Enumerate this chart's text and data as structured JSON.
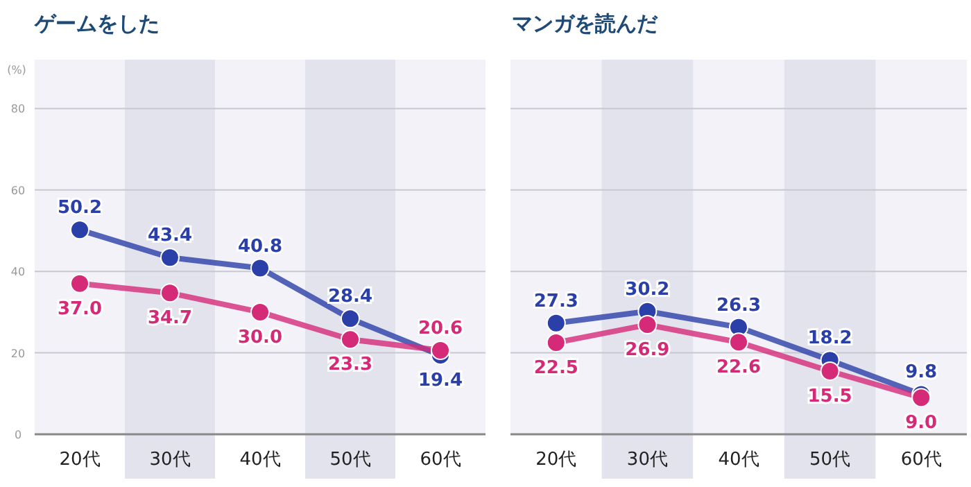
{
  "chart_data": [
    {
      "type": "line",
      "title": "ゲームをした",
      "ylabel": "(%)",
      "categories": [
        "20代",
        "30代",
        "40代",
        "50代",
        "60代"
      ],
      "series": [
        {
          "color": "#2b3fa8",
          "values": [
            50.2,
            43.4,
            40.8,
            28.4,
            19.4
          ],
          "value_labels": [
            "50.2",
            "43.4",
            "40.8",
            "28.4",
            "19.4"
          ]
        },
        {
          "color": "#d42a78",
          "values": [
            37.0,
            34.7,
            30.0,
            23.3,
            20.6
          ],
          "value_labels": [
            "37.0",
            "34.7",
            "30.0",
            "23.3",
            "20.6"
          ]
        }
      ],
      "ylim": [
        0,
        92
      ],
      "yticks": [
        0,
        20,
        40,
        60,
        80
      ],
      "grid": "y",
      "marker": "circle",
      "bands": [
        {
          "axis": "x",
          "from": "30代",
          "to": "30代",
          "color": "#e3e3ee"
        },
        {
          "axis": "x",
          "from": "50代",
          "to": "50代",
          "color": "#e3e3ee"
        }
      ]
    },
    {
      "type": "line",
      "title": "マンガを読んだ",
      "categories": [
        "20代",
        "30代",
        "40代",
        "50代",
        "60代"
      ],
      "series": [
        {
          "color": "#2b3fa8",
          "values": [
            27.3,
            30.2,
            26.3,
            18.2,
            9.8
          ],
          "value_labels": [
            "27.3",
            "30.2",
            "26.3",
            "18.2",
            "9.8"
          ]
        },
        {
          "color": "#d42a78",
          "values": [
            22.5,
            26.9,
            22.6,
            15.5,
            9.0
          ],
          "value_labels": [
            "22.5",
            "26.9",
            "22.6",
            "15.5",
            "9.0"
          ]
        }
      ],
      "ylim": [
        0,
        92
      ],
      "yticks": [
        0,
        20,
        40,
        60,
        80
      ],
      "grid": "y",
      "marker": "circle",
      "tick_labels": "x",
      "bands": [
        {
          "axis": "x",
          "from": "30代",
          "to": "30代",
          "color": "#e3e3ee"
        },
        {
          "axis": "x",
          "from": "50代",
          "to": "50代",
          "color": "#e3e3ee"
        }
      ]
    }
  ]
}
